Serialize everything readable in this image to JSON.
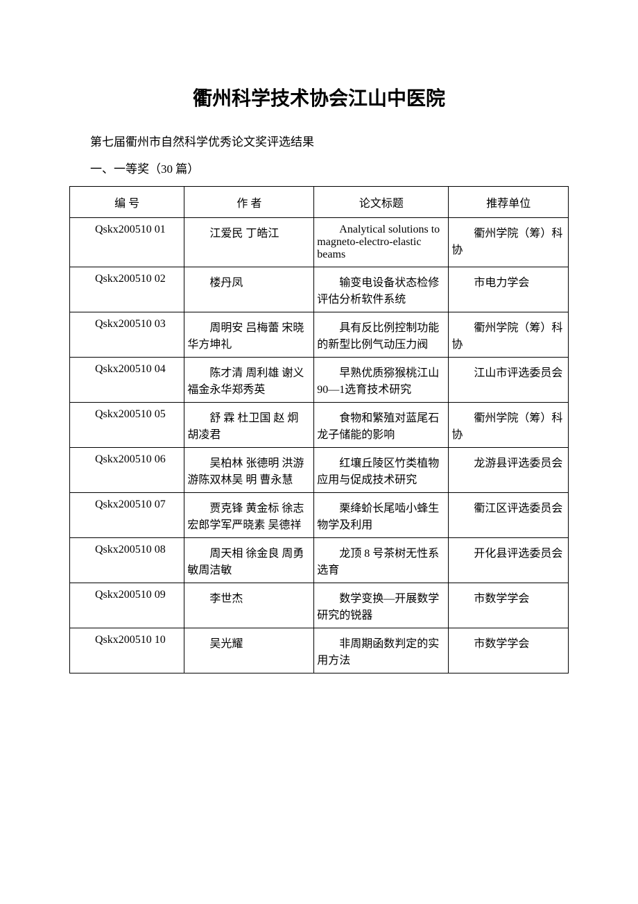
{
  "title": "衢州科学技术协会江山中医院",
  "subtitle": "第七届衢州市自然科学优秀论文奖评选结果",
  "section_label": "一、一等奖（30 篇）",
  "table": {
    "headers": {
      "id": "编 号",
      "author": "作 者",
      "paper_title": "论文标题",
      "unit": "推荐单位"
    },
    "rows": [
      {
        "id": "Qskx200510 01",
        "author": "江爱民 丁皓江",
        "paper_title": "Analytical solutions to magneto-electro-elastic beams",
        "unit": "衢州学院（筹）科协"
      },
      {
        "id": "Qskx200510 02",
        "author": "楼丹凤",
        "paper_title": "输变电设备状态检修评估分析软件系统",
        "unit": "市电力学会"
      },
      {
        "id": "Qskx200510 03",
        "author": "周明安 吕梅蕾 宋晓华方坤礼",
        "paper_title": "具有反比例控制功能的新型比例气动压力阀",
        "unit": "衢州学院（筹）科协"
      },
      {
        "id": "Qskx200510 04",
        "author": "陈才清 周利雄 谢义福金永华郑秀英",
        "paper_title": "早熟优质猕猴桃江山 90—1选育技术研究",
        "unit": "江山市评选委员会"
      },
      {
        "id": "Qskx200510 05",
        "author": "舒 霖 杜卫国 赵 炯胡凌君",
        "paper_title": "食物和繁殖对蓝尾石龙子储能的影响",
        "unit": "衢州学院（筹）科协"
      },
      {
        "id": "Qskx200510 06",
        "author": "吴柏林 张德明 洪游游陈双林吴 明 曹永慧",
        "paper_title": "红壤丘陵区竹类植物应用与促成技术研究",
        "unit": "龙游县评选委员会"
      },
      {
        "id": "Qskx200510 07",
        "author": "贾克锋 黄金标 徐志宏郎学军严晓素 吴德祥",
        "paper_title": "栗绛蚧长尾啮小蜂生物学及利用",
        "unit": "衢江区评选委员会"
      },
      {
        "id": "Qskx200510 08",
        "author": "周天相 徐金良 周勇敏周洁敏",
        "paper_title": "龙顶 8 号茶树无性系选育",
        "unit": "开化县评选委员会"
      },
      {
        "id": "Qskx200510 09",
        "author": "李世杰",
        "paper_title": "数学变换—开展数学研究的锐器",
        "unit": "市数学学会"
      },
      {
        "id": "Qskx200510 10",
        "author": "吴光耀",
        "paper_title": "非周期函数判定的实用方法",
        "unit": "市数学学会"
      }
    ]
  }
}
